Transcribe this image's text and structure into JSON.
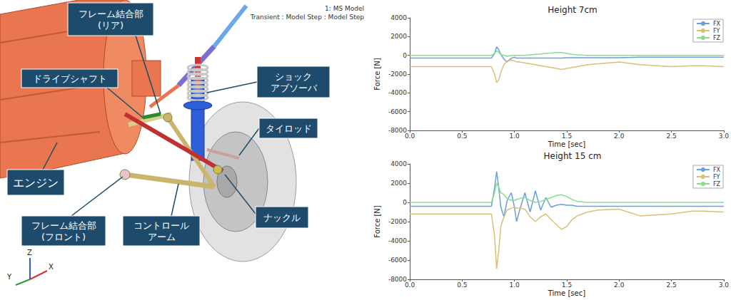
{
  "chart_data": [
    {
      "type": "line",
      "title": "Height 7cm",
      "xlabel": "Time [sec]",
      "ylabel": "Force [N]",
      "x": [
        0.0,
        0.5,
        0.78,
        0.81,
        0.83,
        0.85,
        0.87,
        0.9,
        0.93,
        0.97,
        1.0,
        1.02,
        1.05,
        1.1,
        1.15,
        1.2,
        1.25,
        1.3,
        1.35,
        1.4,
        1.45,
        1.5,
        1.55,
        1.6,
        1.7,
        1.8,
        2.0,
        2.2,
        2.5,
        2.7,
        2.8,
        3.0
      ],
      "series": [
        {
          "name": "FX",
          "color": "#6a9fd8",
          "values": [
            -300,
            -300,
            -300,
            200,
            900,
            600,
            100,
            -400,
            -700,
            -300,
            -200,
            -300,
            -300,
            -300,
            -300,
            -300,
            -300,
            -300,
            -300,
            -300,
            -300,
            -250,
            -250,
            -250,
            -250,
            -250,
            -250,
            -200,
            -200,
            -200,
            -200,
            -200
          ]
        },
        {
          "name": "FY",
          "color": "#d9bf78",
          "values": [
            -1200,
            -1200,
            -1200,
            -2000,
            -2900,
            -2600,
            -1800,
            -1000,
            -600,
            -500,
            -600,
            -700,
            -700,
            -800,
            -900,
            -1000,
            -1100,
            -1200,
            -1300,
            -1400,
            -1500,
            -1400,
            -1300,
            -1200,
            -1000,
            -900,
            -700,
            -1000,
            -1200,
            -1100,
            -1100,
            -1200
          ]
        },
        {
          "name": "FZ",
          "color": "#86e08a",
          "values": [
            0,
            0,
            0,
            200,
            500,
            300,
            100,
            0,
            -100,
            0,
            0,
            0,
            0,
            0,
            50,
            100,
            150,
            200,
            250,
            300,
            300,
            200,
            100,
            50,
            0,
            0,
            0,
            0,
            0,
            0,
            0,
            0
          ]
        }
      ],
      "xlim": [
        0,
        3
      ],
      "xticks": [
        {
          "value": 0,
          "label": "0.0"
        },
        0.5,
        {
          "value": 1,
          "label": "1.0"
        },
        1.5,
        {
          "value": 2,
          "label": "2.0"
        },
        2.5,
        {
          "value": 3,
          "label": "3.0"
        }
      ],
      "ylim": [
        -8000,
        4000
      ],
      "yticks": [
        -8000,
        -6000,
        -4000,
        -2000,
        0,
        2000,
        4000
      ],
      "grid": false,
      "legend": "upper right"
    },
    {
      "type": "line",
      "title": "Height 15 cm",
      "xlabel": "Time [sec]",
      "ylabel": "Force [N]",
      "x": [
        0.0,
        0.5,
        0.78,
        0.81,
        0.83,
        0.85,
        0.87,
        0.9,
        0.93,
        0.97,
        1.0,
        1.02,
        1.05,
        1.1,
        1.15,
        1.2,
        1.25,
        1.3,
        1.35,
        1.4,
        1.45,
        1.5,
        1.55,
        1.6,
        1.7,
        1.8,
        2.0,
        2.2,
        2.5,
        2.7,
        2.8,
        3.0
      ],
      "series": [
        {
          "name": "FX",
          "color": "#6a9fd8",
          "values": [
            -400,
            -400,
            -400,
            1500,
            3200,
            1500,
            -500,
            -1500,
            200,
            1000,
            -500,
            -2000,
            -800,
            1000,
            -1000,
            1200,
            -800,
            500,
            -500,
            -300,
            -200,
            -300,
            -300,
            -400,
            -400,
            -400,
            -400,
            -400,
            -400,
            -400,
            -400,
            -400
          ]
        },
        {
          "name": "FY",
          "color": "#d9bf78",
          "values": [
            -1200,
            -1200,
            -1200,
            -3500,
            -6900,
            -5000,
            -2500,
            -1500,
            -800,
            -600,
            -500,
            -600,
            -600,
            -700,
            -1500,
            -2000,
            -1500,
            -1200,
            -1800,
            -2300,
            -2800,
            -2500,
            -1800,
            -1400,
            -1000,
            -800,
            -700,
            -1400,
            -1200,
            -900,
            -900,
            -1000
          ]
        },
        {
          "name": "FZ",
          "color": "#86e08a",
          "values": [
            0,
            0,
            0,
            1000,
            2000,
            1600,
            1000,
            800,
            400,
            200,
            200,
            300,
            400,
            500,
            200,
            0,
            100,
            300,
            500,
            700,
            800,
            600,
            300,
            100,
            0,
            0,
            0,
            0,
            0,
            0,
            0,
            0
          ]
        }
      ],
      "xlim": [
        0,
        3
      ],
      "xticks": [
        {
          "value": 0,
          "label": "0.0"
        },
        0.5,
        {
          "value": 1,
          "label": "1.0"
        },
        1.5,
        {
          "value": 2,
          "label": "2.0"
        },
        2.5,
        {
          "value": 3,
          "label": "3.0"
        }
      ],
      "ylim": [
        -8000,
        4000
      ],
      "yticks": [
        -8000,
        -6000,
        -4000,
        -2000,
        0,
        2000,
        4000
      ],
      "grid": false,
      "legend": "upper right"
    }
  ],
  "diagram": {
    "model_info": [
      "1: MS Model",
      "Transient : Model Step : Model Step"
    ],
    "labels": [
      [
        "フレーム結合部",
        "(リア)"
      ],
      [
        "ドライブシャフト"
      ],
      [
        "ショック",
        "アブソーバ"
      ],
      [
        "タイロッド"
      ],
      [
        "エンジン"
      ],
      [
        "フレーム結合部",
        "(フロント)"
      ],
      [
        "コントロール",
        "アーム"
      ],
      [
        "ナックル"
      ]
    ],
    "triad": [
      "Z",
      "Y",
      "X"
    ]
  }
}
